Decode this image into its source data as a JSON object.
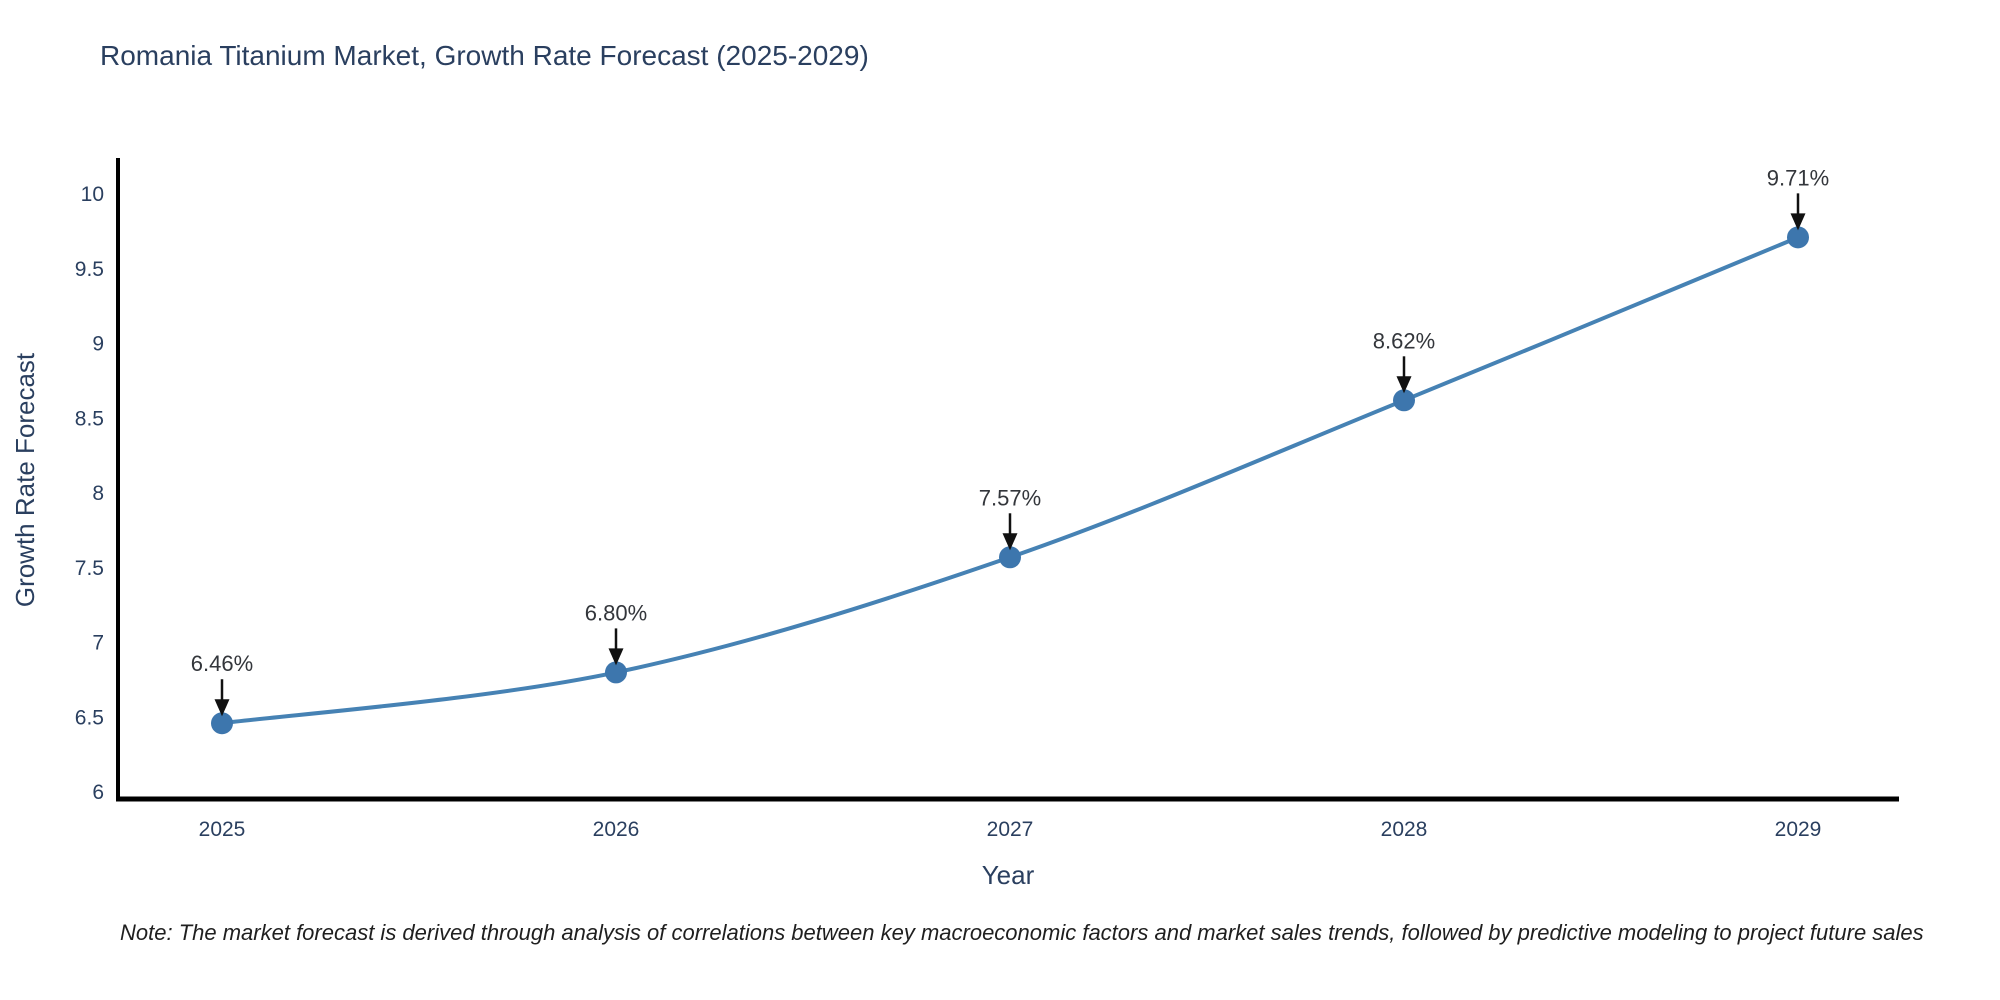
{
  "chart_data": {
    "type": "line",
    "title": "Romania Titanium Market, Growth Rate Forecast (2025-2029)",
    "xlabel": "Year",
    "ylabel": "Growth Rate Forecast",
    "categories": [
      "2025",
      "2026",
      "2027",
      "2028",
      "2029"
    ],
    "values": [
      6.46,
      6.8,
      7.57,
      8.62,
      9.71
    ],
    "point_labels": [
      "6.46%",
      "6.80%",
      "7.57%",
      "8.62%",
      "9.71%"
    ],
    "yticks": [
      6,
      6.5,
      7,
      7.5,
      8,
      8.5,
      9,
      9.5,
      10
    ],
    "ytick_labels": [
      "6",
      "6.5",
      "7",
      "7.5",
      "8",
      "8.5",
      "9",
      "9.5",
      "10"
    ],
    "ylim": [
      5.95,
      10.25
    ],
    "grid": false,
    "legend_position": "none",
    "line_shape": "spline",
    "colors": {
      "line": "#4682b4",
      "marker": "#3d76ad",
      "axis": "#000000",
      "text": "#2a3f5f",
      "annotation_text": "#33363b",
      "annotation_arrow": "#111111"
    },
    "note": "Note: The market forecast is derived through analysis of correlations between key macroeconomic factors and market sales trends, followed by predictive modeling to project future sales"
  }
}
